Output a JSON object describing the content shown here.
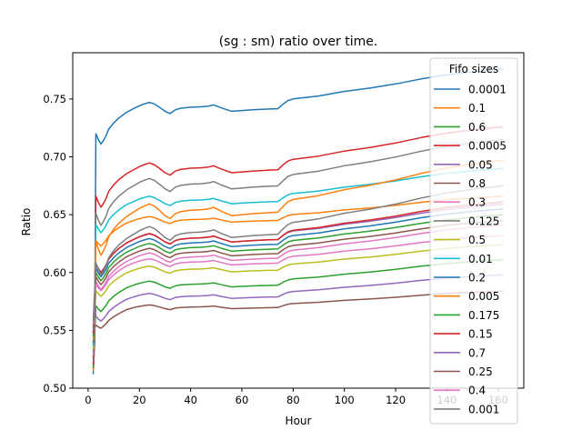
{
  "chart_data": {
    "type": "line",
    "title": "(sg : sm) ratio over time.",
    "xlabel": "Hour",
    "ylabel": "Ratio",
    "xlim": [
      -6,
      170
    ],
    "ylim": [
      0.5,
      0.79
    ],
    "xticks": [
      0,
      20,
      40,
      60,
      80,
      100,
      120,
      140,
      160
    ],
    "xtick_labels": [
      "0",
      "20",
      "40",
      "60",
      "80",
      "100",
      "120",
      "140",
      "160"
    ],
    "yticks": [
      0.5,
      0.55,
      0.6,
      0.65,
      0.7,
      0.75
    ],
    "ytick_labels": [
      "0.50",
      "0.55",
      "0.60",
      "0.65",
      "0.70",
      "0.75"
    ],
    "grid": false,
    "legend": {
      "title": "Fifo sizes",
      "placement": "upper-right"
    },
    "series": [
      {
        "name": "0.0001",
        "color": "#1f77b4",
        "plateau": 0.74,
        "final": 0.776
      },
      {
        "name": "0.1",
        "color": "#ff7f0e",
        "plateau": 0.644,
        "final": 0.666
      },
      {
        "name": "0.6",
        "color": "#2ca02c",
        "plateau": 0.588,
        "final": 0.611
      },
      {
        "name": "0.0005",
        "color": "#d62728",
        "plateau": 0.687,
        "final": 0.726
      },
      {
        "name": "0.05",
        "color": "#9467bd",
        "plateau": 0.627,
        "final": 0.659
      },
      {
        "name": "0.8",
        "color": "#8c564b",
        "plateau": 0.569,
        "final": 0.584
      },
      {
        "name": "0.3",
        "color": "#e377c2",
        "plateau": 0.611,
        "final": 0.641
      },
      {
        "name": "0.125",
        "color": "#7f7f7f",
        "plateau": 0.673,
        "final": 0.715
      },
      {
        "name": "0.5",
        "color": "#bcbd22",
        "plateau": 0.601,
        "final": 0.624
      },
      {
        "name": "0.01",
        "color": "#17becf",
        "plateau": 0.66,
        "final": 0.69
      },
      {
        "name": "0.2",
        "color": "#1f77b4",
        "plateau": 0.623,
        "final": 0.655
      },
      {
        "name": "0.005",
        "color": "#ff7f0e",
        "plateau": 0.65,
        "final": 0.697
      },
      {
        "name": "0.175",
        "color": "#2ca02c",
        "plateau": 0.619,
        "final": 0.65
      },
      {
        "name": "0.15",
        "color": "#d62728",
        "plateau": 0.627,
        "final": 0.661
      },
      {
        "name": "0.7",
        "color": "#9467bd",
        "plateau": 0.578,
        "final": 0.598
      },
      {
        "name": "0.25",
        "color": "#8c564b",
        "plateau": 0.615,
        "final": 0.645
      },
      {
        "name": "0.4",
        "color": "#e377c2",
        "plateau": 0.607,
        "final": 0.632
      },
      {
        "name": "0.001",
        "color": "#7f7f7f",
        "plateau": 0.631,
        "final": 0.675
      }
    ]
  }
}
